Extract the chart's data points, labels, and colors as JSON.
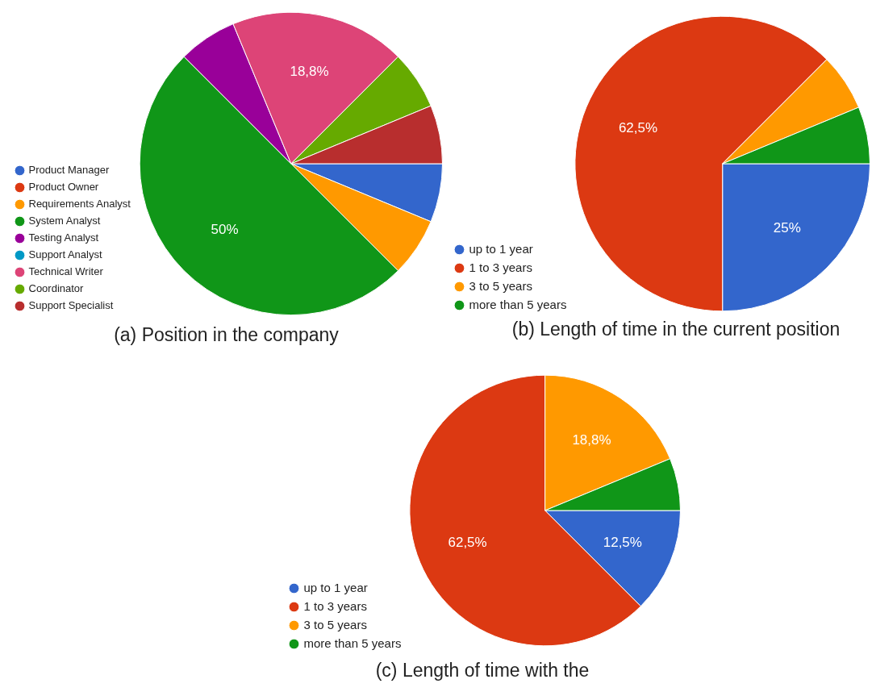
{
  "chart_data": [
    {
      "type": "pie",
      "title": "(a) Position in the company",
      "categories": [
        "Product Manager",
        "Product Owner",
        "Requirements Analyst",
        "System Analyst",
        "Testing Analyst",
        "Support Analyst",
        "Technical Writer",
        "Coordinator",
        "Support Specialist"
      ],
      "values": [
        6.25,
        0,
        6.25,
        50,
        6.25,
        0,
        18.75,
        6.25,
        6.25
      ],
      "colors": [
        "#3366cc",
        "#dc3912",
        "#ff9900",
        "#109618",
        "#990099",
        "#0099c6",
        "#dd4477",
        "#66aa00",
        "#b82e2e"
      ],
      "value_labels": [
        null,
        null,
        null,
        "50%",
        null,
        null,
        "18,8%",
        null,
        null
      ],
      "legend": "left"
    },
    {
      "type": "pie",
      "title": "(b) Length of time in the current position",
      "categories": [
        "up to 1 year",
        "1 to 3 years",
        "3 to 5 years",
        "more than 5 years"
      ],
      "values": [
        25,
        62.5,
        6.25,
        6.25
      ],
      "colors": [
        "#3366cc",
        "#dc3912",
        "#ff9900",
        "#109618"
      ],
      "value_labels": [
        "25%",
        "62,5%",
        null,
        null
      ],
      "legend": "left"
    },
    {
      "type": "pie",
      "title": "(c) Length of time with the",
      "categories": [
        "up to 1 year",
        "1 to 3 years",
        "3 to 5 years",
        "more than 5 years"
      ],
      "values": [
        12.5,
        62.5,
        18.75,
        6.25
      ],
      "colors": [
        "#3366cc",
        "#dc3912",
        "#ff9900",
        "#109618"
      ],
      "value_labels": [
        "12,5%",
        "62,5%",
        "18,8%",
        null
      ],
      "legend": "left"
    }
  ]
}
